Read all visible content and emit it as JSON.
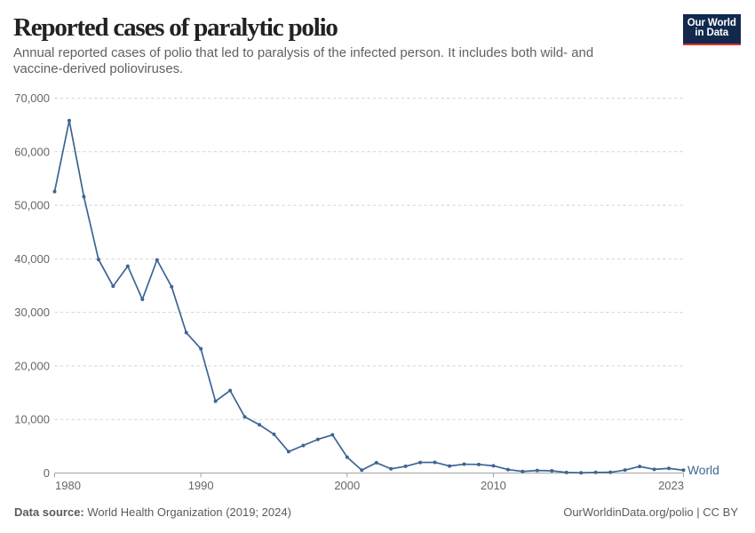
{
  "header": {
    "title": "Reported cases of paralytic polio",
    "subtitle": "Annual reported cases of polio that led to paralysis of the infected person. It includes both wild- and vaccine-derived polioviruses."
  },
  "logo": {
    "line1": "Our World",
    "line2": "in Data"
  },
  "footer": {
    "source_label": "Data source:",
    "source_value": "World Health Organization (2019; 2024)",
    "license": "OurWorldinData.org/polio | CC BY"
  },
  "colors": {
    "line": "#3d6493",
    "logo_navy": "#12294d",
    "logo_red": "#e22c26",
    "grid": "#d2d2d2",
    "axis": "#a3a3a3",
    "tick_label": "#666666"
  },
  "chart_data": {
    "type": "line",
    "title": "Reported cases of paralytic polio",
    "xlabel": "",
    "ylabel": "",
    "x": [
      1980,
      1981,
      1982,
      1983,
      1984,
      1985,
      1986,
      1987,
      1988,
      1989,
      1990,
      1991,
      1992,
      1993,
      1994,
      1995,
      1996,
      1997,
      1998,
      1999,
      2000,
      2001,
      2002,
      2003,
      2004,
      2005,
      2006,
      2007,
      2008,
      2009,
      2010,
      2011,
      2012,
      2013,
      2014,
      2015,
      2016,
      2017,
      2018,
      2019,
      2020,
      2021,
      2022,
      2023
    ],
    "series": [
      {
        "name": "World",
        "values": [
          52552,
          65818,
          51600,
          39879,
          34890,
          38637,
          32419,
          39787,
          34783,
          26227,
          23195,
          13407,
          15406,
          10487,
          9017,
          7229,
          3995,
          5143,
          6286,
          7124,
          2971,
          537,
          1922,
          784,
          1258,
          1979,
          1997,
          1310,
          1652,
          1604,
          1350,
          650,
          291,
          478,
          415,
          106,
          42,
          118,
          139,
          554,
          1226,
          688,
          875,
          536
        ]
      }
    ],
    "xticks": [
      1980,
      1990,
      2000,
      2010,
      2023
    ],
    "yticks": [
      0,
      10000,
      20000,
      30000,
      40000,
      50000,
      60000,
      70000
    ],
    "ytick_labels": [
      "0",
      "10,000",
      "20,000",
      "30,000",
      "40,000",
      "50,000",
      "60,000",
      "70,000"
    ],
    "xlim": [
      1980,
      2023
    ],
    "ylim": [
      0,
      70000
    ],
    "grid": true,
    "legend_position": "right-of-line-end"
  }
}
